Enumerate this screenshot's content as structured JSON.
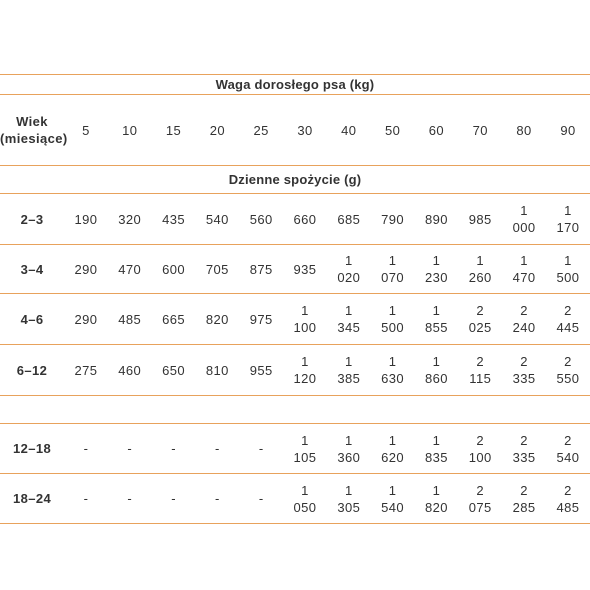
{
  "table": {
    "weight_header": "Waga dorosłego psa (kg)",
    "age_header_line1": "Wiek",
    "age_header_line2": "(miesiące)",
    "weights": [
      "5",
      "10",
      "15",
      "20",
      "25",
      "30",
      "40",
      "50",
      "60",
      "70",
      "80",
      "90"
    ],
    "intake_header": "Dzienne spożycie (g)",
    "rows_group1": [
      {
        "age": "2–3",
        "values": [
          [
            "190"
          ],
          [
            "320"
          ],
          [
            "435"
          ],
          [
            "540"
          ],
          [
            "560"
          ],
          [
            "660"
          ],
          [
            "685"
          ],
          [
            "790"
          ],
          [
            "890"
          ],
          [
            "985"
          ],
          [
            "1",
            "000"
          ],
          [
            "1",
            "170"
          ]
        ]
      },
      {
        "age": "3–4",
        "values": [
          [
            "290"
          ],
          [
            "470"
          ],
          [
            "600"
          ],
          [
            "705"
          ],
          [
            "875"
          ],
          [
            "935"
          ],
          [
            "1",
            "020"
          ],
          [
            "1",
            "070"
          ],
          [
            "1",
            "230"
          ],
          [
            "1",
            "260"
          ],
          [
            "1",
            "470"
          ],
          [
            "1",
            "500"
          ]
        ]
      },
      {
        "age": "4–6",
        "values": [
          [
            "290"
          ],
          [
            "485"
          ],
          [
            "665"
          ],
          [
            "820"
          ],
          [
            "975"
          ],
          [
            "1",
            "100"
          ],
          [
            "1",
            "345"
          ],
          [
            "1",
            "500"
          ],
          [
            "1",
            "855"
          ],
          [
            "2",
            "025"
          ],
          [
            "2",
            "240"
          ],
          [
            "2",
            "445"
          ]
        ]
      },
      {
        "age": "6–12",
        "values": [
          [
            "275"
          ],
          [
            "460"
          ],
          [
            "650"
          ],
          [
            "810"
          ],
          [
            "955"
          ],
          [
            "1",
            "120"
          ],
          [
            "1",
            "385"
          ],
          [
            "1",
            "630"
          ],
          [
            "1",
            "860"
          ],
          [
            "2",
            "115"
          ],
          [
            "2",
            "335"
          ],
          [
            "2",
            "550"
          ]
        ]
      }
    ],
    "rows_group2": [
      {
        "age": "12–18",
        "values": [
          [
            "-"
          ],
          [
            "-"
          ],
          [
            "-"
          ],
          [
            "-"
          ],
          [
            "-"
          ],
          [
            "1",
            "105"
          ],
          [
            "1",
            "360"
          ],
          [
            "1",
            "620"
          ],
          [
            "1",
            "835"
          ],
          [
            "2",
            "100"
          ],
          [
            "2",
            "335"
          ],
          [
            "2",
            "540"
          ]
        ]
      },
      {
        "age": "18–24",
        "values": [
          [
            "-"
          ],
          [
            "-"
          ],
          [
            "-"
          ],
          [
            "-"
          ],
          [
            "-"
          ],
          [
            "1",
            "050"
          ],
          [
            "1",
            "305"
          ],
          [
            "1",
            "540"
          ],
          [
            "1",
            "820"
          ],
          [
            "2",
            "075"
          ],
          [
            "2",
            "285"
          ],
          [
            "2",
            "485"
          ]
        ]
      }
    ]
  }
}
